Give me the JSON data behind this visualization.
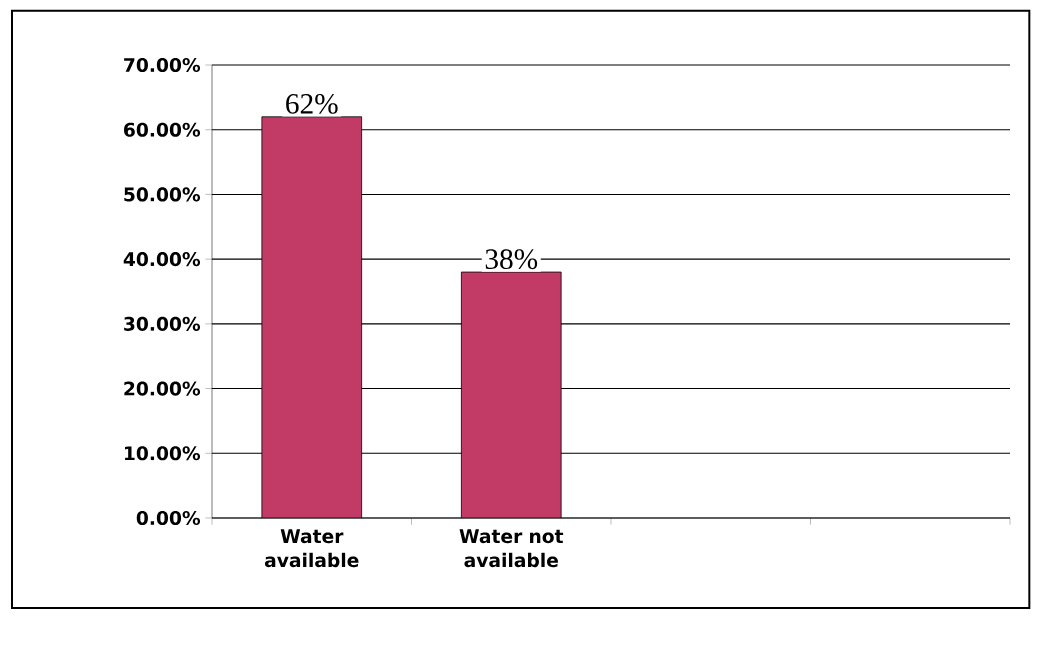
{
  "chart_data": {
    "type": "bar",
    "categories": [
      "Water available",
      "Water not available",
      null,
      null
    ],
    "values": [
      62,
      38,
      null,
      null
    ],
    "value_labels": [
      "62%",
      "38%",
      null,
      null
    ],
    "color": "#c23b67",
    "ylim": [
      0,
      70
    ],
    "yticks": [
      {
        "value": 0,
        "label": "0.00%"
      },
      {
        "value": 10,
        "label": "10.00%"
      },
      {
        "value": 20,
        "label": "20.00%"
      },
      {
        "value": 30,
        "label": "30.00%"
      },
      {
        "value": 40,
        "label": "40.00%"
      },
      {
        "value": 50,
        "label": "50.00%"
      },
      {
        "value": 60,
        "label": "60.00%"
      },
      {
        "value": 70,
        "label": "70.00%"
      }
    ],
    "grid": "y"
  }
}
